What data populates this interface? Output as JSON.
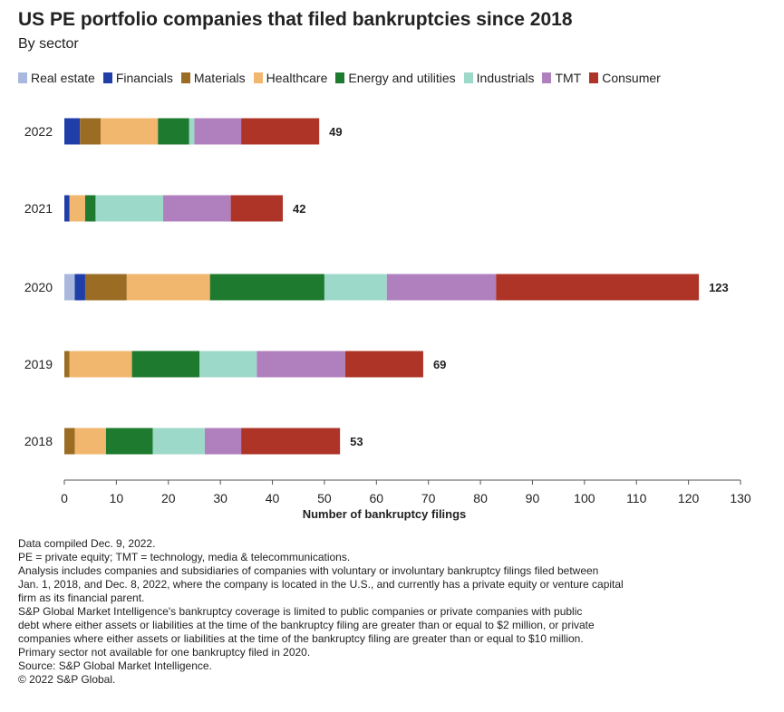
{
  "chart_data": {
    "type": "bar",
    "orientation": "horizontal",
    "stacked": true,
    "title": "US PE portfolio companies that filed bankruptcies since 2018",
    "subtitle": "By sector",
    "xlabel": "Number of bankruptcy filings",
    "ylabel": "",
    "xlim": [
      0,
      130
    ],
    "xticks": [
      0,
      10,
      20,
      30,
      40,
      50,
      60,
      70,
      80,
      90,
      100,
      110,
      120,
      130
    ],
    "grid": false,
    "legend_position": "top",
    "categories": [
      "2022",
      "2021",
      "2020",
      "2019",
      "2018"
    ],
    "series": [
      {
        "name": "Real estate",
        "color": "#a9b8dc",
        "values": [
          0,
          0,
          2,
          0,
          0
        ]
      },
      {
        "name": "Financials",
        "color": "#1f3ea8",
        "values": [
          3,
          1,
          2,
          0,
          0
        ]
      },
      {
        "name": "Materials",
        "color": "#9b6d24",
        "values": [
          4,
          0,
          8,
          1,
          2
        ]
      },
      {
        "name": "Healthcare",
        "color": "#f2b76e",
        "values": [
          11,
          3,
          16,
          12,
          6
        ]
      },
      {
        "name": "Energy and utilities",
        "color": "#1e7a2e",
        "values": [
          6,
          2,
          22,
          13,
          9
        ]
      },
      {
        "name": "Industrials",
        "color": "#9dd9c9",
        "values": [
          1,
          13,
          12,
          11,
          10
        ]
      },
      {
        "name": "TMT",
        "color": "#b07fbd",
        "values": [
          9,
          13,
          21,
          17,
          7
        ]
      },
      {
        "name": "Consumer",
        "color": "#ad3427",
        "values": [
          15,
          10,
          39,
          15,
          19
        ]
      }
    ],
    "totals": [
      "49",
      "42",
      "123",
      "69",
      "53"
    ]
  },
  "notes": [
    "Data compiled Dec. 9, 2022.",
    "PE = private equity; TMT = technology, media & telecommunications.",
    "Analysis includes companies and subsidiaries of companies with voluntary or involuntary bankruptcy filings filed between",
    "Jan. 1, 2018, and Dec. 8, 2022, where the company is located in the U.S., and currently has a private equity or venture capital",
    "firm as its financial parent.",
    "S&P Global Market Intelligence's bankruptcy coverage is limited to public companies or private companies with public",
    "debt where either assets or liabilities at the time of the bankruptcy filing are greater than or equal to $2 million, or private",
    "companies where either assets or liabilities at the time of the bankruptcy filing are greater than or equal to $10 million.",
    "Primary sector not available for one bankruptcy filed in 2020.",
    "Source: S&P Global Market Intelligence.",
    "© 2022 S&P Global."
  ]
}
